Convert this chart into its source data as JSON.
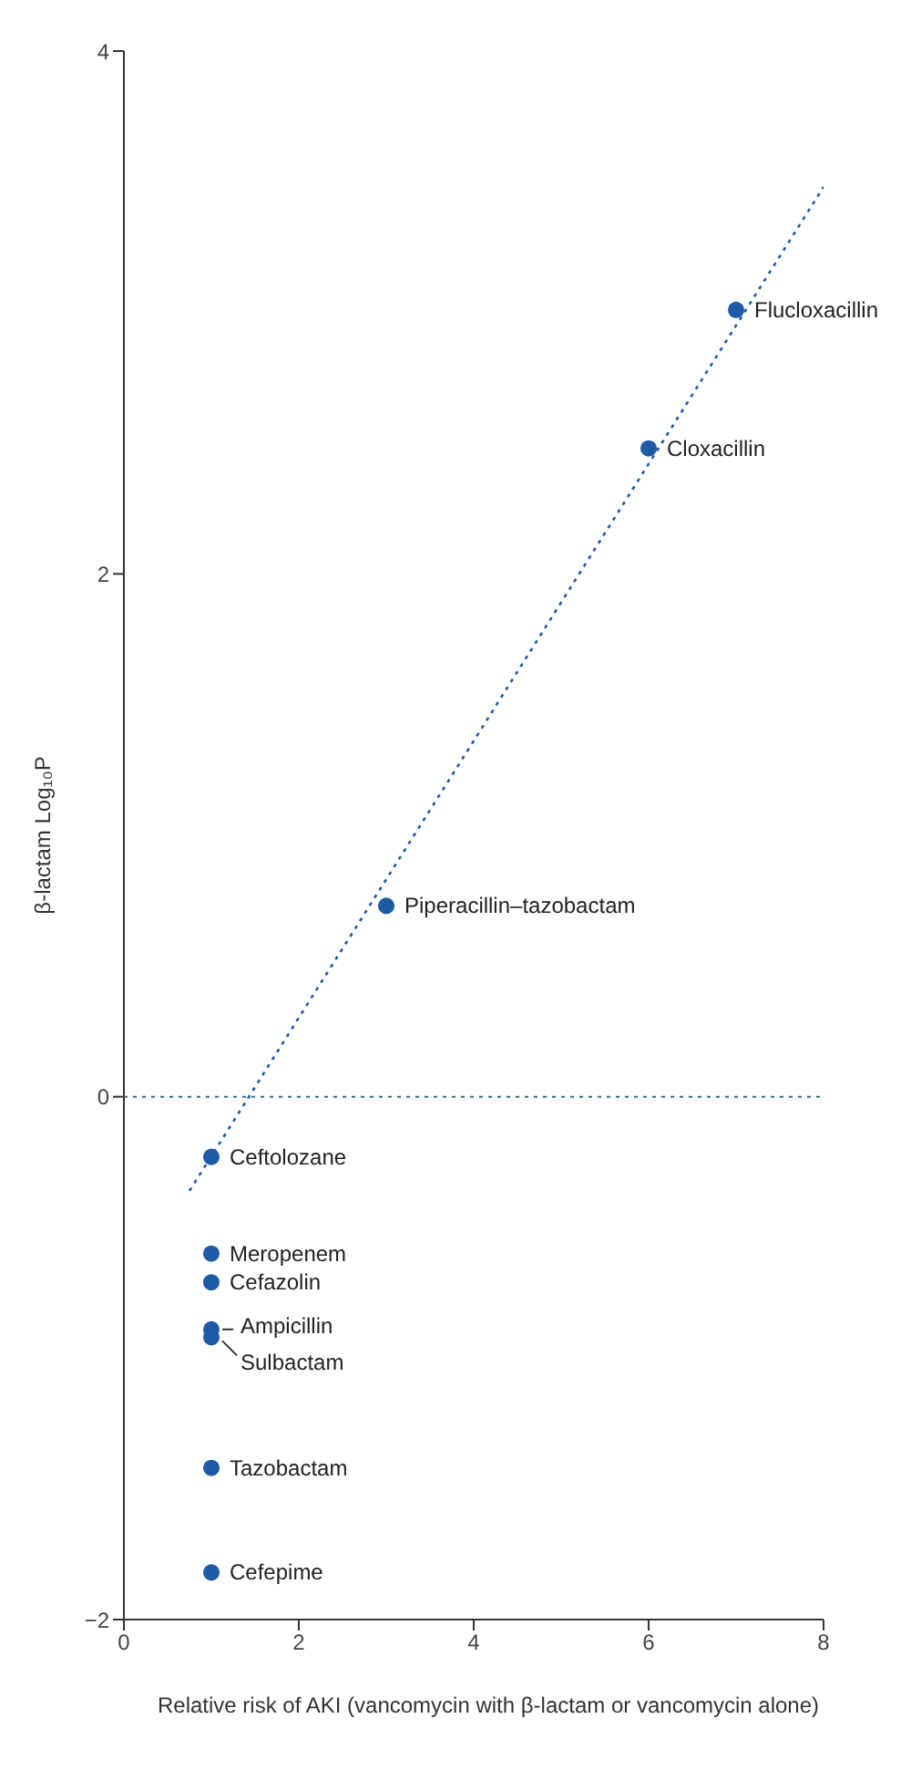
{
  "chart_data": {
    "type": "scatter",
    "xlabel": "Relative risk of AKI (vancomycin with β-lactam or vancomycin alone)",
    "ylabel": "β-lactam Log₁₀P",
    "xlim": [
      0,
      8
    ],
    "xticks": [
      0,
      2,
      4,
      6,
      8
    ],
    "ylim": [
      -2,
      4
    ],
    "yticks": [
      -2,
      0,
      2,
      4
    ],
    "marker": "circle",
    "series": [
      {
        "color": "#1f5aa6",
        "x": [
          7,
          6,
          3,
          1,
          1,
          1,
          1,
          1,
          1,
          1
        ],
        "values": [
          3.01,
          2.48,
          0.73,
          -0.23,
          -0.6,
          -0.71,
          -0.89,
          -0.92,
          -1.42,
          -1.82
        ]
      },
      {
        "type": "line",
        "color": "#1f5aa6",
        "line_style": "dotted",
        "marker": "none",
        "x": [
          0.75,
          8
        ],
        "values": [
          -0.36,
          3.48
        ]
      }
    ],
    "ref_lines": [
      {
        "axis": "y",
        "value": 0,
        "color": "#2e6e8e",
        "line_style": "dotted"
      }
    ],
    "annotations": [
      {
        "text": "Flucloxacillin",
        "x": 7,
        "y": 3.01
      },
      {
        "text": "Cloxacillin",
        "x": 6,
        "y": 2.48
      },
      {
        "text": "Piperacillin–tazobactam",
        "x": 3,
        "y": 0.73
      },
      {
        "text": "Ceftolozane",
        "x": 1,
        "y": -0.23
      },
      {
        "text": "Meropenem",
        "x": 1,
        "y": -0.6
      },
      {
        "text": "Cefazolin",
        "x": 1,
        "y": -0.71
      },
      {
        "text": "Ampicillin",
        "x": 1,
        "y": -0.89
      },
      {
        "text": "Sulbactam",
        "x": 1,
        "y": -0.92
      },
      {
        "text": "Tazobactam",
        "x": 1,
        "y": -1.42
      },
      {
        "text": "Cefepime",
        "x": 1,
        "y": -1.82
      }
    ]
  }
}
